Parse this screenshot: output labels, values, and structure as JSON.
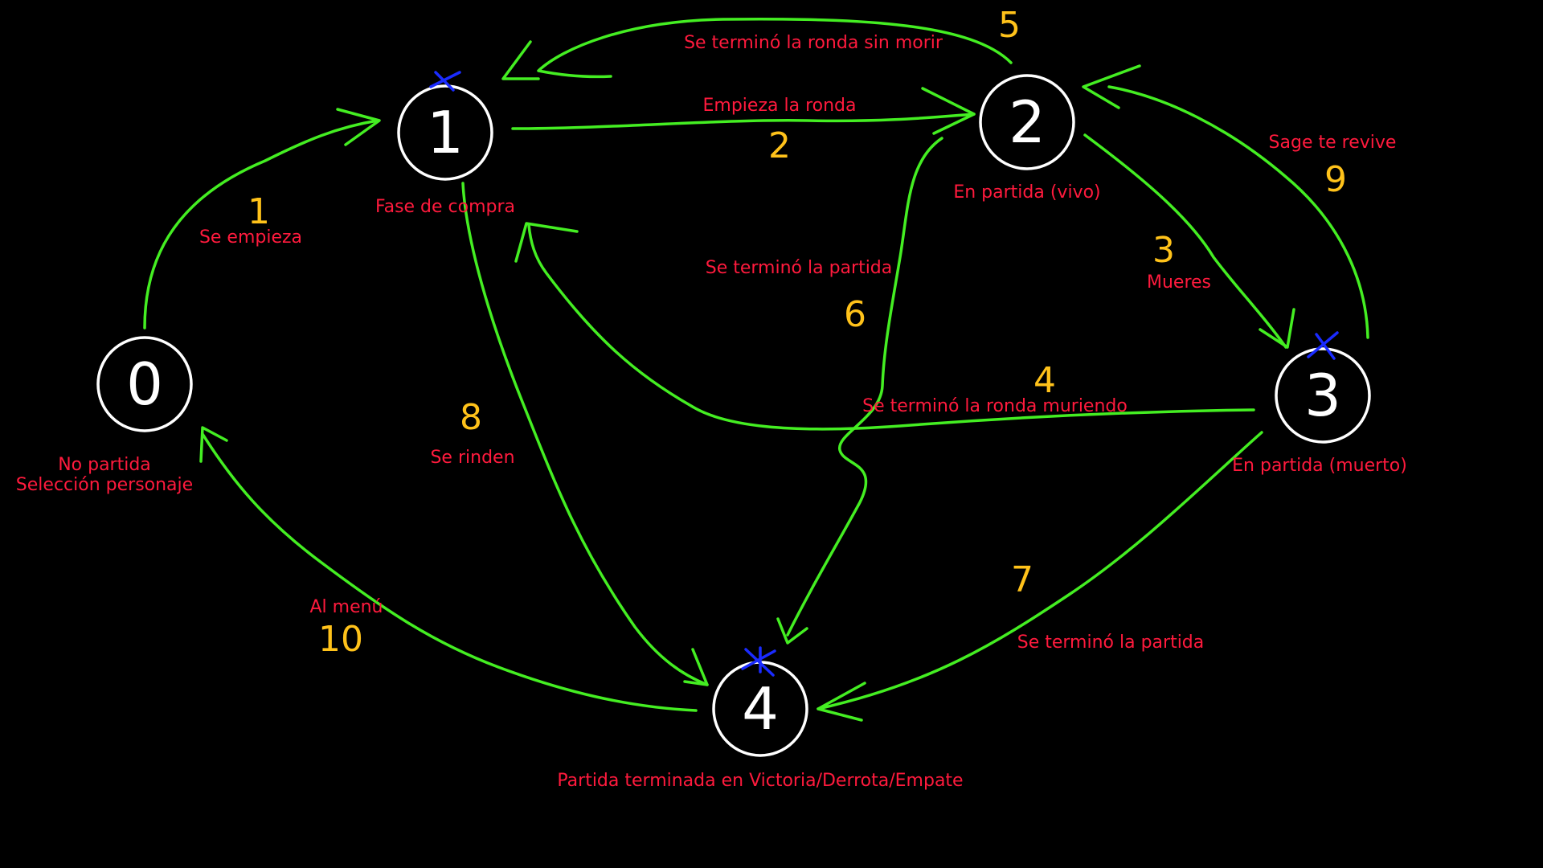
{
  "diagram": {
    "states": [
      {
        "id": "0",
        "number": "0",
        "label_lines": [
          "No partida",
          "Selección personaje"
        ],
        "final": false
      },
      {
        "id": "1",
        "number": "1",
        "label_lines": [
          "Fase de compra"
        ],
        "final": true
      },
      {
        "id": "2",
        "number": "2",
        "label_lines": [
          "En partida (vivo)"
        ],
        "final": false
      },
      {
        "id": "3",
        "number": "3",
        "label_lines": [
          "En partida (muerto)"
        ],
        "final": true
      },
      {
        "id": "4",
        "number": "4",
        "label_lines": [
          "Partida terminada en Victoria/Derrota/Empate"
        ],
        "final": true
      }
    ],
    "transitions": [
      {
        "number": "1",
        "from": "0",
        "to": "1",
        "label": "Se empieza"
      },
      {
        "number": "2",
        "from": "1",
        "to": "2",
        "label": "Empieza la ronda"
      },
      {
        "number": "3",
        "from": "2",
        "to": "3",
        "label": "Mueres"
      },
      {
        "number": "4",
        "from": "3",
        "to": "1",
        "label": "Se terminó la ronda muriendo"
      },
      {
        "number": "5",
        "from": "2",
        "to": "1",
        "label": "Se terminó la ronda sin morir"
      },
      {
        "number": "6",
        "from": "2",
        "to": "4",
        "label": "Se terminó la partida"
      },
      {
        "number": "7",
        "from": "3",
        "to": "4",
        "label": "Se terminó la partida"
      },
      {
        "number": "8",
        "from": "1",
        "to": "4",
        "label": "Se rinden"
      },
      {
        "number": "9",
        "from": "3",
        "to": "2",
        "label": "Sage te revive"
      },
      {
        "number": "10",
        "from": "4",
        "to": "0",
        "label": "Al menú"
      }
    ],
    "colors": {
      "background": "#000000",
      "state_circle": "#ffffff",
      "edge": "#44ee22",
      "text": "#ff1a3d",
      "edge_number": "#ffc21a",
      "final_marker": "#1a2bff"
    }
  }
}
